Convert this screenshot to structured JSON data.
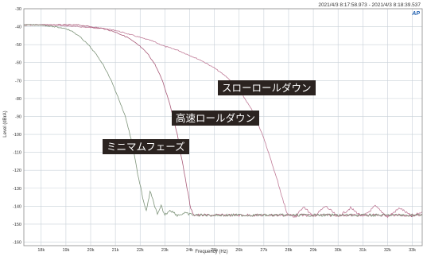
{
  "header": {
    "timestamp": "2021/4/3 8:17:58.973 -  2021/4/3 8:18:39.537",
    "logo_text": "AP"
  },
  "colors": {
    "background": "#ffffff",
    "grid": "#c8d0d8",
    "frame": "#8a8a8a",
    "annotation_bg": "#2b2320",
    "annotation_text": "#ffffff"
  },
  "annotations": {
    "slow": "スローロールダウン",
    "fast": "高速ロールダウン",
    "minimum": "ミニマムフェーズ"
  },
  "chart_data": {
    "type": "line",
    "xlabel": "Frequency (Hz)",
    "ylabel": "Level (dBrA)",
    "xlim": [
      17300,
      33400
    ],
    "ylim": [
      -162,
      -30
    ],
    "x_ticks": [
      18000,
      19000,
      20000,
      21000,
      22000,
      23000,
      24000,
      25000,
      26000,
      27000,
      28000,
      29000,
      30000,
      31000,
      32000,
      33000
    ],
    "x_tick_labels": [
      "18k",
      "19k",
      "20k",
      "21k",
      "22k",
      "23k",
      "24k",
      "25k",
      "26k",
      "27k",
      "28k",
      "29k",
      "30k",
      "31k",
      "32k",
      "33k"
    ],
    "y_ticks": [
      -30,
      -40,
      -50,
      -60,
      -70,
      -80,
      -90,
      -100,
      -110,
      -120,
      -130,
      -140,
      -150,
      -160
    ],
    "grid": true,
    "series": [
      {
        "color": "#c07c98",
        "x": [
          17300,
          18500,
          19500,
          20500,
          21000,
          21500,
          22000,
          22500,
          23000,
          23500,
          24000,
          24500,
          25000,
          25500,
          26000,
          26500,
          27000,
          27300,
          27600,
          27800,
          27950,
          28000,
          28300,
          28600,
          29000,
          29500,
          30000,
          30500,
          31000,
          31500,
          32000,
          32500,
          33000,
          33400
        ],
        "y": [
          -39,
          -39,
          -40,
          -41,
          -42,
          -44,
          -46,
          -48,
          -51,
          -53,
          -56,
          -59,
          -63,
          -68,
          -75,
          -86,
          -102,
          -115,
          -128,
          -138,
          -144,
          -145,
          -146,
          -140,
          -146,
          -140,
          -146,
          -141,
          -146,
          -140,
          -146,
          -141,
          -146,
          -143
        ]
      },
      {
        "color": "#a85a78",
        "x": [
          17300,
          18500,
          19500,
          20000,
          20500,
          21000,
          21500,
          22000,
          22300,
          22600,
          22900,
          23200,
          23500,
          23700,
          23900,
          24050,
          24200,
          24600,
          25000,
          26000,
          27000,
          28000,
          29000,
          30000,
          31000,
          32000,
          33000,
          33400
        ],
        "y": [
          -39,
          -39,
          -39,
          -40,
          -41,
          -43,
          -46,
          -51,
          -55,
          -61,
          -70,
          -83,
          -100,
          -115,
          -130,
          -142,
          -145,
          -145,
          -145,
          -145,
          -145,
          -145,
          -145,
          -145,
          -145,
          -145,
          -145,
          -145
        ]
      },
      {
        "color": "#7e947a",
        "x": [
          17300,
          18000,
          18500,
          19000,
          19300,
          19600,
          19900,
          20200,
          20500,
          20800,
          21100,
          21400,
          21700,
          21900,
          22100,
          22250,
          22400,
          22550,
          22700,
          22850,
          23000,
          23200,
          23500,
          23800,
          24200,
          25000,
          26000,
          28000,
          30000,
          32000,
          33400
        ],
        "y": [
          -39,
          -39,
          -40,
          -41,
          -43,
          -46,
          -50,
          -55,
          -61,
          -69,
          -79,
          -90,
          -106,
          -122,
          -135,
          -143,
          -132,
          -138,
          -145,
          -140,
          -145,
          -142,
          -145,
          -144,
          -145,
          -145,
          -145,
          -145,
          -145,
          -145,
          -145
        ]
      }
    ]
  }
}
